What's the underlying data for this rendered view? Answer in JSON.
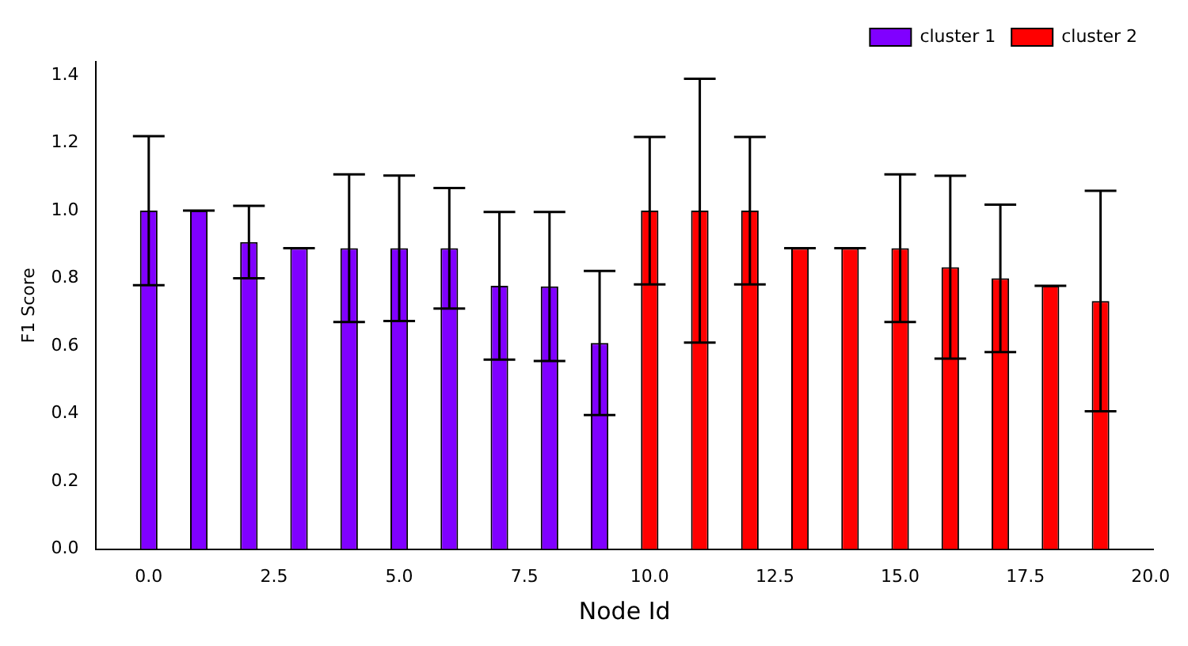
{
  "chart_data": {
    "type": "bar",
    "xlabel": "Node Id",
    "ylabel": "F1 Score",
    "xlim": [
      -1.05,
      20.05
    ],
    "xticks": [
      {
        "value": 0,
        "label": "0.0"
      },
      {
        "value": 2.5,
        "label": "2.5"
      },
      {
        "value": 5,
        "label": "5.0"
      },
      {
        "value": 7.5,
        "label": "7.5"
      },
      {
        "value": 10,
        "label": "10.0"
      },
      {
        "value": 12.5,
        "label": "12.5"
      },
      {
        "value": 15,
        "label": "15.0"
      },
      {
        "value": 17.5,
        "label": "17.5"
      },
      {
        "value": 20,
        "label": "20.0"
      }
    ],
    "ylim": [
      0,
      1.44
    ],
    "yticks": [
      {
        "value": 0,
        "label": "0.0"
      },
      {
        "value": 0.2,
        "label": "0.2"
      },
      {
        "value": 0.4,
        "label": "0.4"
      },
      {
        "value": 0.6,
        "label": "0.6"
      },
      {
        "value": 0.8,
        "label": "0.8"
      },
      {
        "value": 1,
        "label": "1.0"
      },
      {
        "value": 1.2,
        "label": "1.2"
      },
      {
        "value": 1.4,
        "label": "1.4"
      }
    ],
    "grid": false,
    "legend": "top right",
    "series": [
      {
        "name": "cluster 1",
        "color": "#8000ff",
        "x": [
          0,
          1,
          2,
          3,
          4,
          5,
          6,
          7,
          8,
          9
        ],
        "values": [
          1.0,
          1.0,
          0.907,
          0.889,
          0.889,
          0.889,
          0.889,
          0.778,
          0.776,
          0.609
        ],
        "errors": [
          0.22,
          0,
          0.107,
          0,
          0.218,
          0.215,
          0.178,
          0.218,
          0.22,
          0.213
        ]
      },
      {
        "name": "cluster 2",
        "color": "#ff0000",
        "x": [
          10,
          11,
          12,
          13,
          14,
          15,
          16,
          17,
          18,
          19
        ],
        "values": [
          1.0,
          1.0,
          1.0,
          0.889,
          0.889,
          0.889,
          0.833,
          0.8,
          0.778,
          0.733
        ],
        "errors": [
          0.218,
          0.39,
          0.218,
          0,
          0,
          0.218,
          0.27,
          0.218,
          0,
          0.326
        ]
      }
    ]
  }
}
